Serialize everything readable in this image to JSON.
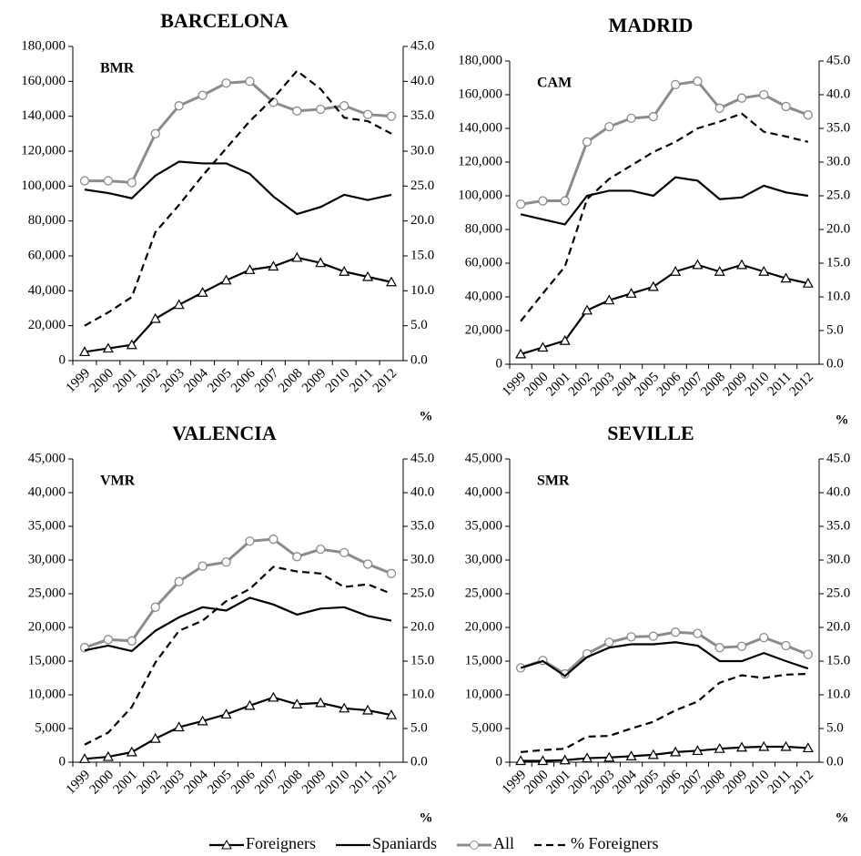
{
  "chart_data": [
    {
      "type": "line",
      "title": "BARCELONA",
      "label": "BMR",
      "legend": "bottom",
      "categories": [
        "1999",
        "2000",
        "2001",
        "2002",
        "2003",
        "2004",
        "2005",
        "2006",
        "2007",
        "2008",
        "2009",
        "2010",
        "2011",
        "2012"
      ],
      "series": [
        {
          "name": "Foreigners",
          "color": "#000000",
          "marker": "triangle",
          "dash": false,
          "values": [
            5000,
            7000,
            9000,
            24000,
            32000,
            39000,
            46000,
            52000,
            54000,
            59000,
            56000,
            51000,
            48000,
            45000
          ]
        },
        {
          "name": "Spaniards",
          "color": "#000000",
          "marker": "none",
          "dash": false,
          "values": [
            98000,
            96000,
            93000,
            106000,
            114000,
            113000,
            113000,
            107000,
            94000,
            84000,
            88000,
            95000,
            92000,
            95000
          ]
        },
        {
          "name": "All",
          "color": "#8c8c8c",
          "marker": "circle",
          "dash": false,
          "values": [
            103000,
            103000,
            102000,
            130000,
            146000,
            152000,
            159000,
            160000,
            148000,
            143000,
            144000,
            146000,
            141000,
            140000
          ]
        },
        {
          "name": "% Foreigners",
          "color": "#000000",
          "marker": "none",
          "dash": true,
          "axis": "y2",
          "values": [
            5.0,
            6.9,
            9.1,
            18.4,
            22.3,
            26.5,
            30.4,
            34.3,
            37.6,
            41.5,
            38.9,
            34.8,
            34.3,
            32.5
          ]
        }
      ],
      "ylim": [
        0,
        180000
      ],
      "yticks": [
        0,
        {
          "value": 20000,
          "label": "20,000"
        },
        {
          "value": 40000,
          "label": "40,000"
        },
        {
          "value": 60000,
          "label": "60,000"
        },
        {
          "value": 80000,
          "label": "80,000"
        },
        {
          "value": 100000,
          "label": "100,000"
        },
        {
          "value": 120000,
          "label": "120,000"
        },
        {
          "value": 140000,
          "label": "140,000"
        },
        {
          "value": 160000,
          "label": "160,000"
        },
        {
          "value": 180000,
          "label": "180,000"
        }
      ],
      "y2lim": [
        0,
        45
      ],
      "y2ticks": [
        {
          "value": 0,
          "label": "0.0"
        },
        {
          "value": 5,
          "label": "5.0"
        },
        {
          "value": 10,
          "label": "10.0"
        },
        {
          "value": 15,
          "label": "15.0"
        },
        {
          "value": 20,
          "label": "20.0"
        },
        {
          "value": 25,
          "label": "25.0"
        },
        {
          "value": 30,
          "label": "30.0"
        },
        {
          "value": 35,
          "label": "35.0"
        },
        {
          "value": 40,
          "label": "40.0"
        },
        {
          "value": 45,
          "label": "45.0"
        }
      ],
      "y2_label": "%"
    },
    {
      "type": "line",
      "title": "MADRID",
      "label": "CAM",
      "categories": [
        "1999",
        "2000",
        "2001",
        "2002",
        "2003",
        "2004",
        "2005",
        "2006",
        "2007",
        "2008",
        "2009",
        "2010",
        "2011",
        "2012"
      ],
      "series": [
        {
          "name": "Foreigners",
          "color": "#000000",
          "marker": "triangle",
          "dash": false,
          "values": [
            6000,
            10000,
            14000,
            32000,
            38000,
            42000,
            46000,
            55000,
            59000,
            55000,
            59000,
            55000,
            51000,
            48000
          ]
        },
        {
          "name": "Spaniards",
          "color": "#000000",
          "marker": "none",
          "dash": false,
          "values": [
            89000,
            86000,
            83000,
            100000,
            103000,
            103000,
            100000,
            111000,
            109000,
            98000,
            99000,
            106000,
            102000,
            100000
          ]
        },
        {
          "name": "All",
          "color": "#8c8c8c",
          "marker": "circle",
          "dash": false,
          "values": [
            95000,
            97000,
            97000,
            132000,
            141000,
            146000,
            147000,
            166000,
            168000,
            152000,
            158000,
            160000,
            153000,
            148000
          ]
        },
        {
          "name": "% Foreigners",
          "color": "#000000",
          "marker": "none",
          "dash": true,
          "axis": "y2",
          "values": [
            6.4,
            10.5,
            14.5,
            24.5,
            27.5,
            29.5,
            31.5,
            33.0,
            35.0,
            36.0,
            37.2,
            34.5,
            33.8,
            33.0
          ]
        }
      ],
      "ylim": [
        0,
        180000
      ],
      "yticks": [
        0,
        {
          "value": 20000,
          "label": "20,000"
        },
        {
          "value": 40000,
          "label": "40,000"
        },
        {
          "value": 60000,
          "label": "60,000"
        },
        {
          "value": 80000,
          "label": "80,000"
        },
        {
          "value": 100000,
          "label": "100,000"
        },
        {
          "value": 120000,
          "label": "120,000"
        },
        {
          "value": 140000,
          "label": "140,000"
        },
        {
          "value": 160000,
          "label": "160,000"
        },
        {
          "value": 180000,
          "label": "180,000"
        }
      ],
      "y2lim": [
        0,
        45
      ],
      "y2ticks": [
        {
          "value": 0,
          "label": "0.0"
        },
        {
          "value": 5,
          "label": "5.0"
        },
        {
          "value": 10,
          "label": "10.0"
        },
        {
          "value": 15,
          "label": "15.0"
        },
        {
          "value": 20,
          "label": "20.0"
        },
        {
          "value": 25,
          "label": "25.0"
        },
        {
          "value": 30,
          "label": "30.0"
        },
        {
          "value": 35,
          "label": "35.0"
        },
        {
          "value": 40,
          "label": "40.0"
        },
        {
          "value": 45,
          "label": "45.0"
        }
      ],
      "y2_label": "%"
    },
    {
      "type": "line",
      "title": "VALENCIA",
      "label": "VMR",
      "categories": [
        "1999",
        "2000",
        "2001",
        "2002",
        "2003",
        "2004",
        "2005",
        "2006",
        "2007",
        "2008",
        "2009",
        "2010",
        "2011",
        "2012"
      ],
      "series": [
        {
          "name": "Foreigners",
          "color": "#000000",
          "marker": "triangle",
          "dash": false,
          "values": [
            500,
            800,
            1500,
            3500,
            5200,
            6100,
            7100,
            8400,
            9600,
            8600,
            8800,
            8000,
            7700,
            7000
          ]
        },
        {
          "name": "Spaniards",
          "color": "#000000",
          "marker": "none",
          "dash": false,
          "values": [
            16600,
            17300,
            16500,
            19500,
            21500,
            23000,
            22500,
            24400,
            23400,
            21900,
            22800,
            23000,
            21700,
            21000
          ]
        },
        {
          "name": "All",
          "color": "#8c8c8c",
          "marker": "circle",
          "dash": false,
          "values": [
            17000,
            18200,
            18000,
            23000,
            26800,
            29100,
            29700,
            32800,
            33100,
            30500,
            31600,
            31100,
            29400,
            28000
          ]
        },
        {
          "name": "% Foreigners",
          "color": "#000000",
          "marker": "none",
          "dash": true,
          "axis": "y2",
          "values": [
            2.6,
            4.4,
            8.2,
            14.8,
            19.5,
            21.0,
            23.9,
            25.7,
            29.0,
            28.3,
            28.0,
            26.0,
            26.4,
            25.0
          ]
        }
      ],
      "ylim": [
        0,
        45000
      ],
      "yticks": [
        0,
        {
          "value": 5000,
          "label": "5,000"
        },
        {
          "value": 10000,
          "label": "10,000"
        },
        {
          "value": 15000,
          "label": "15,000"
        },
        {
          "value": 20000,
          "label": "20,000"
        },
        {
          "value": 25000,
          "label": "25,000"
        },
        {
          "value": 30000,
          "label": "30,000"
        },
        {
          "value": 35000,
          "label": "35,000"
        },
        {
          "value": 40000,
          "label": "40,000"
        },
        {
          "value": 45000,
          "label": "45,000"
        }
      ],
      "y2lim": [
        0,
        45
      ],
      "y2ticks": [
        {
          "value": 0,
          "label": "0.0"
        },
        {
          "value": 5,
          "label": "5.0"
        },
        {
          "value": 10,
          "label": "10.0"
        },
        {
          "value": 15,
          "label": "15.0"
        },
        {
          "value": 20,
          "label": "20.0"
        },
        {
          "value": 25,
          "label": "25.0"
        },
        {
          "value": 30,
          "label": "30.0"
        },
        {
          "value": 35,
          "label": "35.0"
        },
        {
          "value": 40,
          "label": "40.0"
        },
        {
          "value": 45,
          "label": "45.0"
        }
      ],
      "y2_label": "%"
    },
    {
      "type": "line",
      "title": "SEVILLE",
      "label": "SMR",
      "categories": [
        "1999",
        "2000",
        "2001",
        "2002",
        "2003",
        "2004",
        "2005",
        "2006",
        "2007",
        "2008",
        "2009",
        "2010",
        "2011",
        "2012"
      ],
      "series": [
        {
          "name": "Foreigners",
          "color": "#000000",
          "marker": "triangle",
          "dash": false,
          "values": [
            200,
            200,
            300,
            600,
            700,
            900,
            1100,
            1500,
            1700,
            2000,
            2200,
            2300,
            2300,
            2100
          ]
        },
        {
          "name": "Spaniards",
          "color": "#000000",
          "marker": "none",
          "dash": false,
          "values": [
            14000,
            15000,
            12800,
            15600,
            17000,
            17500,
            17500,
            17800,
            17300,
            15000,
            15000,
            16200,
            15000,
            13900
          ]
        },
        {
          "name": "All",
          "color": "#8c8c8c",
          "marker": "circle",
          "dash": false,
          "values": [
            14000,
            15100,
            13100,
            16100,
            17800,
            18600,
            18700,
            19300,
            19100,
            17000,
            17200,
            18500,
            17300,
            16000
          ]
        },
        {
          "name": "% Foreigners",
          "color": "#000000",
          "marker": "none",
          "dash": true,
          "axis": "y2",
          "values": [
            1.5,
            1.8,
            2.0,
            3.8,
            3.9,
            5.0,
            6.0,
            7.7,
            9.0,
            11.8,
            12.9,
            12.5,
            13.0,
            13.1
          ]
        }
      ],
      "ylim": [
        0,
        45000
      ],
      "yticks": [
        0,
        {
          "value": 5000,
          "label": "5,000"
        },
        {
          "value": 10000,
          "label": "10,000"
        },
        {
          "value": 15000,
          "label": "15,000"
        },
        {
          "value": 20000,
          "label": "20,000"
        },
        {
          "value": 25000,
          "label": "25,000"
        },
        {
          "value": 30000,
          "label": "30,000"
        },
        {
          "value": 35000,
          "label": "35,000"
        },
        {
          "value": 40000,
          "label": "40,000"
        },
        {
          "value": 45000,
          "label": "45,000"
        }
      ],
      "y2lim": [
        0,
        45
      ],
      "y2ticks": [
        {
          "value": 0,
          "label": "0.0"
        },
        {
          "value": 5,
          "label": "5.0"
        },
        {
          "value": 10,
          "label": "10.0"
        },
        {
          "value": 15,
          "label": "15.0"
        },
        {
          "value": 20,
          "label": "20.0"
        },
        {
          "value": 25,
          "label": "25.0"
        },
        {
          "value": 30,
          "label": "30.0"
        },
        {
          "value": 35,
          "label": "35.0"
        },
        {
          "value": 40,
          "label": "40.0"
        },
        {
          "value": 45,
          "label": "45.0"
        }
      ],
      "y2_label": "%"
    }
  ]
}
